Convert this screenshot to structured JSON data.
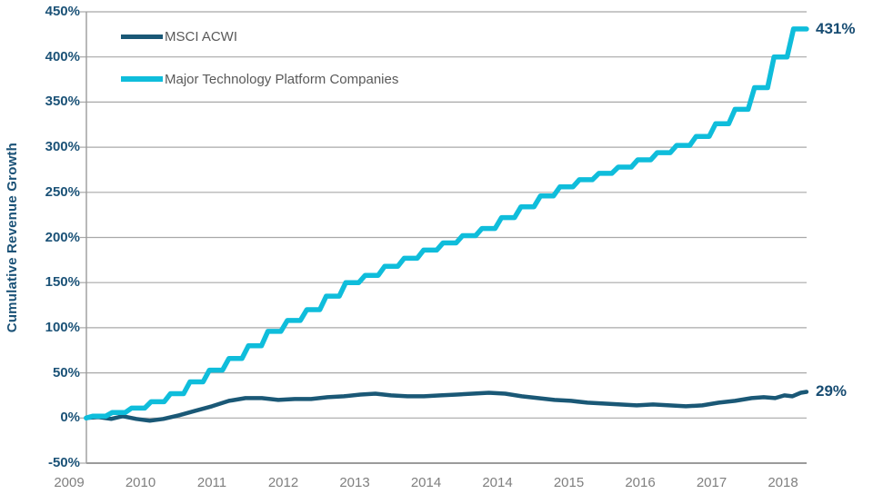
{
  "chart_data": {
    "type": "line",
    "title": "",
    "ylabel": "Cumulative Revenue Growth",
    "xlabel": "",
    "grid": true,
    "legend_position": "top-left-inside",
    "y_axis": {
      "min": -50,
      "max": 450,
      "step": 50,
      "tick_labels": [
        "450%",
        "400%",
        "350%",
        "300%",
        "250%",
        "200%",
        "150%",
        "100%",
        "50%",
        "0%",
        "-50%"
      ]
    },
    "x_axis": {
      "tick_labels": [
        "2009",
        "2010",
        "2011",
        "2012",
        "2013",
        "2014",
        "2014",
        "2015",
        "2016",
        "2017",
        "2018"
      ]
    },
    "colors": {
      "grid": "#A8A8A8",
      "axis": "#9B9B9B",
      "y_tick_label": "#1B5277",
      "x_tick_label": "#7F7F7F",
      "legend_text": "#595959",
      "end_label": "#174C72",
      "background": "#FFFFFF"
    },
    "series": [
      {
        "name": "MSCI ACWI",
        "color": "#1A5876",
        "line_width": 4.5,
        "render": "line",
        "end_label": "29%",
        "end_value": 29,
        "points": [
          [
            0.24,
            0
          ],
          [
            0.41,
            1
          ],
          [
            0.59,
            -1
          ],
          [
            0.75,
            2
          ],
          [
            0.94,
            -1
          ],
          [
            1.13,
            -3
          ],
          [
            1.32,
            -1
          ],
          [
            1.54,
            3
          ],
          [
            1.77,
            8
          ],
          [
            2.0,
            13
          ],
          [
            2.24,
            19
          ],
          [
            2.47,
            22
          ],
          [
            2.7,
            22
          ],
          [
            2.93,
            20
          ],
          [
            3.16,
            21
          ],
          [
            3.39,
            21
          ],
          [
            3.62,
            23
          ],
          [
            3.85,
            24
          ],
          [
            4.08,
            26
          ],
          [
            4.29,
            27
          ],
          [
            4.51,
            25
          ],
          [
            4.74,
            24
          ],
          [
            4.97,
            24
          ],
          [
            5.2,
            25
          ],
          [
            5.43,
            26
          ],
          [
            5.65,
            27
          ],
          [
            5.88,
            28
          ],
          [
            6.11,
            27
          ],
          [
            6.34,
            24
          ],
          [
            6.57,
            22
          ],
          [
            6.8,
            20
          ],
          [
            7.03,
            19
          ],
          [
            7.26,
            17
          ],
          [
            7.49,
            16
          ],
          [
            7.72,
            15
          ],
          [
            7.95,
            14
          ],
          [
            8.18,
            15
          ],
          [
            8.41,
            14
          ],
          [
            8.64,
            13
          ],
          [
            8.87,
            14
          ],
          [
            9.1,
            17
          ],
          [
            9.33,
            19
          ],
          [
            9.56,
            22
          ],
          [
            9.73,
            23
          ],
          [
            9.89,
            22
          ],
          [
            10.02,
            25
          ],
          [
            10.13,
            24
          ],
          [
            10.25,
            28
          ],
          [
            10.33,
            29
          ]
        ]
      },
      {
        "name": "Major Technology Platform Companies",
        "color": "#0FBDDB",
        "line_width": 5.5,
        "render": "steps",
        "end_label": "431%",
        "end_value": 431,
        "u_start": 0.24,
        "u_end": 10.33,
        "quarterly_values": [
          0,
          2,
          6,
          11,
          18,
          27,
          40,
          53,
          66,
          80,
          96,
          108,
          120,
          135,
          150,
          158,
          168,
          177,
          186,
          194,
          202,
          210,
          222,
          234,
          246,
          256,
          264,
          271,
          278,
          286,
          294,
          302,
          312,
          326,
          342,
          366,
          400,
          431
        ]
      }
    ]
  }
}
